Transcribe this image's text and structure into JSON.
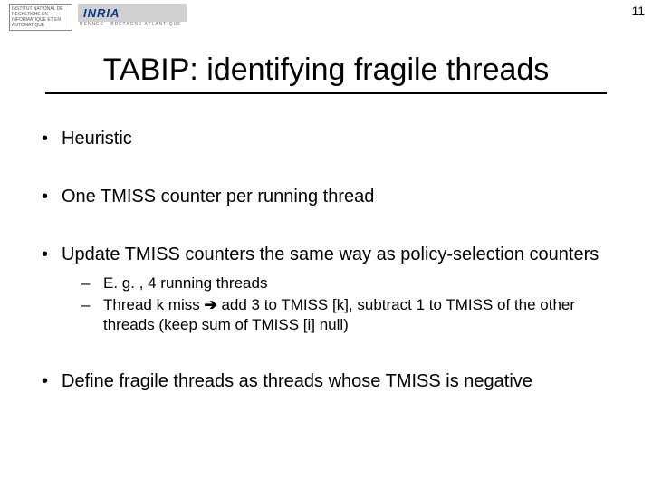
{
  "header": {
    "logo_left_text": "INSTITUT NATIONAL DE RECHERCHE EN INFORMATIQUE ET EN AUTOMATIQUE",
    "inria_label": "INRIA",
    "inria_subtitle": "RENNES - BRETAGNE ATLANTIQUE",
    "page_number": "11"
  },
  "title": "TABIP: identifying fragile threads",
  "bullets": [
    {
      "text": "Heuristic"
    },
    {
      "text": "One TMISS counter per running thread"
    },
    {
      "text": "Update TMISS counters the same way as policy-selection counters"
    }
  ],
  "sub_bullets": [
    {
      "text": "E. g. , 4 running threads"
    },
    {
      "prefix": "Thread k miss ",
      "arrow": "➔",
      "suffix": " add 3 to TMISS [k], subtract 1 to TMISS of the other threads (keep sum of TMISS [i] null)"
    }
  ],
  "final_bullet": "Define fragile threads as threads whose TMISS is negative",
  "colors": {
    "text": "#000000",
    "background": "#ffffff",
    "underline": "#000000",
    "inria_blue": "#0a3a8a",
    "inria_bar": "#d0d0d0"
  }
}
